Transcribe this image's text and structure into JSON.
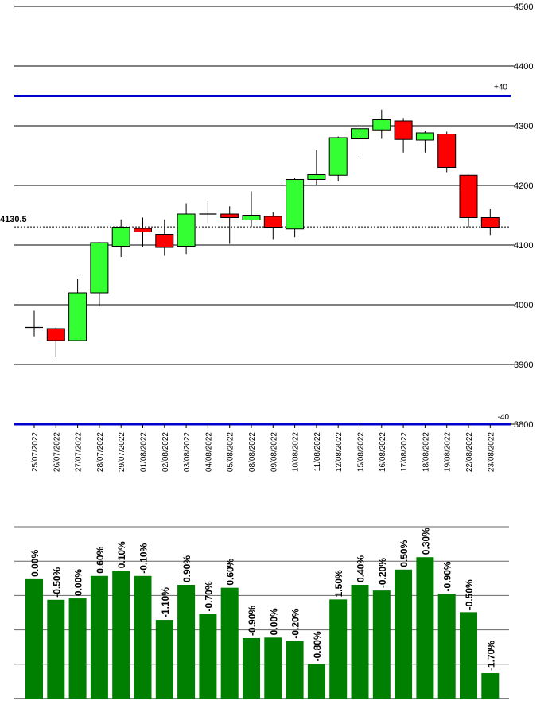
{
  "chart_data": [
    {
      "type": "candlestick",
      "title": "",
      "xlabel": "",
      "ylabel": "",
      "ylim": [
        3800,
        4500
      ],
      "yticks": [
        "4500",
        "4400",
        "4300",
        "4200",
        "4100",
        "4000",
        "3900",
        "3800"
      ],
      "grid": true,
      "current_price": "4130.5",
      "upper_band": {
        "value": 4350,
        "label": "+40"
      },
      "lower_band": {
        "value": 3800,
        "label": "-40"
      },
      "colors": {
        "up": "#33ff33",
        "down": "#ff0000",
        "band": "#0000cc",
        "bar": "#008000"
      },
      "categories": [
        "25/07/2022",
        "26/07/2022",
        "27/07/2022",
        "28/07/2022",
        "29/07/2022",
        "01/08/2022",
        "02/08/2022",
        "03/08/2022",
        "04/08/2022",
        "05/08/2022",
        "08/08/2022",
        "09/08/2022",
        "10/08/2022",
        "11/08/2022",
        "12/08/2022",
        "15/08/2022",
        "16/08/2022",
        "17/08/2022",
        "18/08/2022",
        "19/08/2022",
        "22/08/2022",
        "23/08/2022"
      ],
      "candles": [
        {
          "open": 3962,
          "high": 3990,
          "low": 3947,
          "close": 3962
        },
        {
          "open": 3960,
          "high": 3962,
          "low": 3912,
          "close": 3940
        },
        {
          "open": 3940,
          "high": 4044,
          "low": 3940,
          "close": 4020
        },
        {
          "open": 4020,
          "high": 4105,
          "low": 3997,
          "close": 4104
        },
        {
          "open": 4098,
          "high": 4143,
          "low": 4080,
          "close": 4130
        },
        {
          "open": 4128,
          "high": 4146,
          "low": 4097,
          "close": 4122
        },
        {
          "open": 4118,
          "high": 4143,
          "low": 4082,
          "close": 4096
        },
        {
          "open": 4098,
          "high": 4170,
          "low": 4085,
          "close": 4152
        },
        {
          "open": 4152,
          "high": 4175,
          "low": 4137,
          "close": 4152
        },
        {
          "open": 4152,
          "high": 4165,
          "low": 4102,
          "close": 4146
        },
        {
          "open": 4142,
          "high": 4190,
          "low": 4130,
          "close": 4150
        },
        {
          "open": 4148,
          "high": 4155,
          "low": 4110,
          "close": 4130
        },
        {
          "open": 4127,
          "high": 4212,
          "low": 4113,
          "close": 4210
        },
        {
          "open": 4210,
          "high": 4260,
          "low": 4200,
          "close": 4218
        },
        {
          "open": 4217,
          "high": 4282,
          "low": 4207,
          "close": 4280
        },
        {
          "open": 4278,
          "high": 4305,
          "low": 4248,
          "close": 4295
        },
        {
          "open": 4293,
          "high": 4327,
          "low": 4278,
          "close": 4310
        },
        {
          "open": 4308,
          "high": 4313,
          "low": 4255,
          "close": 4277
        },
        {
          "open": 4276,
          "high": 4292,
          "low": 4255,
          "close": 4288
        },
        {
          "open": 4286,
          "high": 4290,
          "low": 4222,
          "close": 4230
        },
        {
          "open": 4217,
          "high": 4218,
          "low": 4130,
          "close": 4146
        },
        {
          "open": 4146,
          "high": 4160,
          "low": 4117,
          "close": 4130
        }
      ]
    },
    {
      "type": "bar",
      "title": "",
      "xlabel": "",
      "ylabel": "",
      "ylim": [
        0,
        100
      ],
      "grid": true,
      "categories": [
        "25/07/2022",
        "26/07/2022",
        "27/07/2022",
        "28/07/2022",
        "29/07/2022",
        "01/08/2022",
        "02/08/2022",
        "03/08/2022",
        "04/08/2022",
        "05/08/2022",
        "08/08/2022",
        "09/08/2022",
        "10/08/2022",
        "11/08/2022",
        "12/08/2022",
        "15/08/2022",
        "16/08/2022",
        "17/08/2022",
        "18/08/2022",
        "19/08/2022",
        "22/08/2022",
        "23/08/2022"
      ],
      "values": [
        69.5,
        57.5,
        58.3,
        71.4,
        74.4,
        71.4,
        45.8,
        66.2,
        49.3,
        64.5,
        35.2,
        35.5,
        33.5,
        20.2,
        57.7,
        66.2,
        62.9,
        75.1,
        82.3,
        60.9,
        50.3,
        14.8
      ],
      "labels": [
        "0.00%",
        "-0.50%",
        "0.00%",
        "0.60%",
        "0.10%",
        "-0.10%",
        "-1.10%",
        "0.90%",
        "-0.70%",
        "0.60%",
        "-0.90%",
        "0.00%",
        "-0.20%",
        "-0.80%",
        "1.50%",
        "0.40%",
        "-0.20%",
        "0.50%",
        "0.30%",
        "-0.90%",
        "-0.50%",
        "-1.70%"
      ]
    }
  ]
}
